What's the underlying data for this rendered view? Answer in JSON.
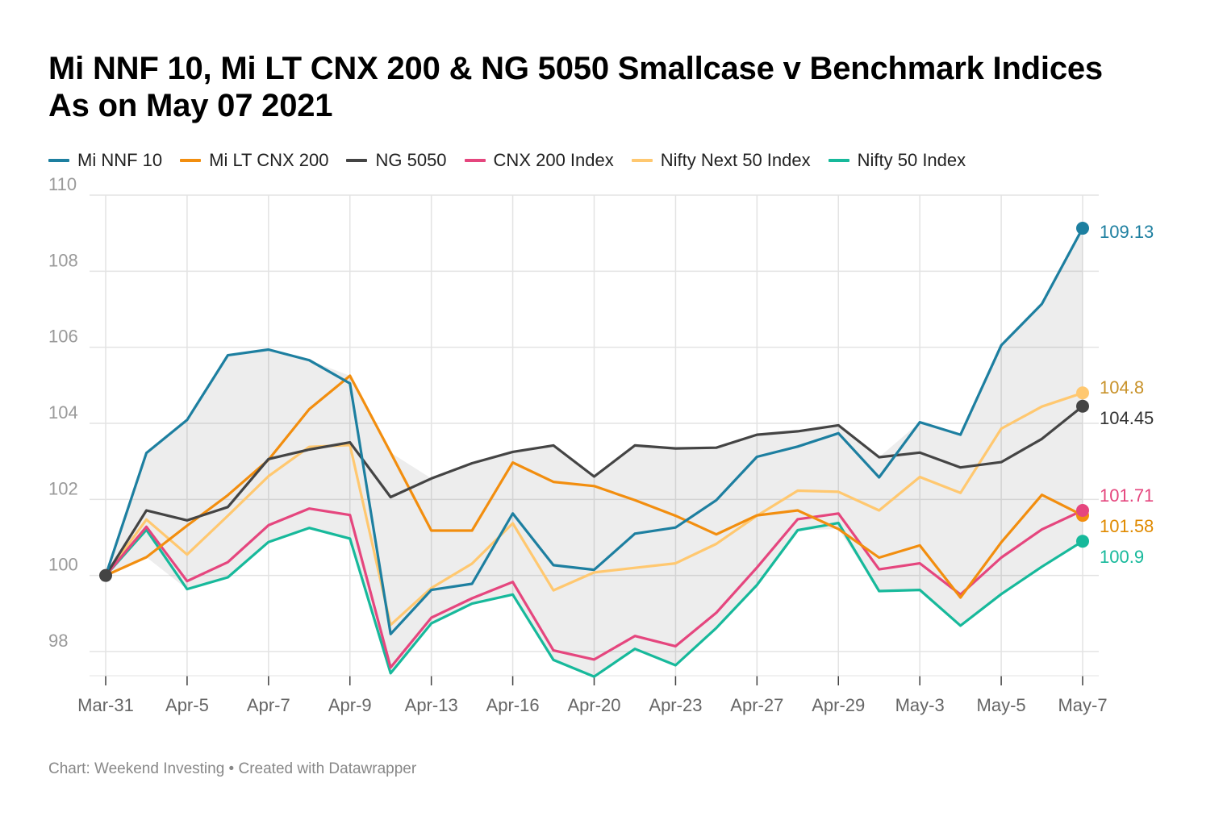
{
  "title": "Mi NNF 10, Mi LT CNX 200 & NG 5050 Smallcase v Benchmark Indices",
  "subtitle": "As on May 07 2021",
  "footer": "Chart: Weekend Investing • Created with Datawrapper",
  "chart_data": {
    "type": "line",
    "title": "Mi NNF 10, Mi LT CNX 200 & NG 5050 Smallcase v Benchmark Indices",
    "subtitle": "As on May 07 2021",
    "xlabel": "",
    "ylabel": "",
    "ylim": [
      97.2,
      110
    ],
    "yticks": [
      98,
      100,
      102,
      104,
      106,
      108,
      110
    ],
    "x": [
      "Mar-31",
      "Apr-1",
      "Apr-5",
      "Apr-6",
      "Apr-7",
      "Apr-8",
      "Apr-9",
      "Apr-12",
      "Apr-13",
      "Apr-15",
      "Apr-16",
      "Apr-19",
      "Apr-20",
      "Apr-22",
      "Apr-23",
      "Apr-26",
      "Apr-27",
      "Apr-28",
      "Apr-29",
      "Apr-30",
      "May-3",
      "May-4",
      "May-5",
      "May-6",
      "May-7"
    ],
    "xtick_labels": [
      "Mar-31",
      "Apr-5",
      "Apr-7",
      "Apr-9",
      "Apr-13",
      "Apr-16",
      "Apr-20",
      "Apr-23",
      "Apr-27",
      "Apr-29",
      "May-3",
      "May-5",
      "May-7"
    ],
    "xtick_indices": [
      0,
      2,
      4,
      6,
      8,
      10,
      12,
      14,
      16,
      18,
      20,
      22,
      24
    ],
    "grid": true,
    "legend_position": "top-left",
    "range_band": true,
    "series": [
      {
        "name": "Mi NNF 10",
        "color": "#1d7fa0",
        "end_label": "109.13",
        "label_color": "#1d7fa0",
        "values": [
          100,
          103.22,
          104.09,
          105.79,
          105.94,
          105.66,
          105.05,
          98.46,
          99.62,
          99.78,
          101.63,
          100.27,
          100.15,
          101.1,
          101.26,
          101.98,
          103.12,
          103.39,
          103.74,
          102.58,
          104.03,
          103.7,
          106.05,
          107.14,
          109.13
        ]
      },
      {
        "name": "Mi LT CNX 200",
        "color": "#f28e0f",
        "end_label": "101.58",
        "label_color": "#e08a00",
        "values": [
          100,
          100.48,
          101.31,
          102.11,
          103.04,
          104.37,
          105.25,
          103.23,
          101.18,
          101.18,
          102.97,
          102.46,
          102.35,
          101.98,
          101.57,
          101.08,
          101.58,
          101.71,
          101.22,
          100.47,
          100.79,
          99.42,
          100.87,
          102.12,
          101.58
        ]
      },
      {
        "name": "NG 5050",
        "color": "#444444",
        "end_label": "104.45",
        "label_color": "#333333",
        "values": [
          100,
          101.71,
          101.45,
          101.8,
          103.06,
          103.31,
          103.5,
          102.06,
          102.55,
          102.95,
          103.25,
          103.42,
          102.6,
          103.42,
          103.34,
          103.36,
          103.7,
          103.79,
          103.95,
          103.11,
          103.23,
          102.84,
          102.98,
          103.59,
          104.45
        ]
      },
      {
        "name": "CNX 200 Index",
        "color": "#e5467e",
        "end_label": "101.71",
        "label_color": "#e5467e",
        "values": [
          100,
          101.28,
          99.85,
          100.35,
          101.32,
          101.76,
          101.59,
          97.58,
          98.89,
          99.4,
          99.83,
          98.03,
          97.79,
          98.41,
          98.14,
          99.02,
          100.21,
          101.48,
          101.63,
          100.16,
          100.32,
          99.5,
          100.47,
          101.21,
          101.71
        ]
      },
      {
        "name": "Nifty Next 50 Index",
        "color": "#ffc870",
        "end_label": "104.8",
        "label_color": "#c8922a",
        "values": [
          100,
          101.47,
          100.55,
          101.57,
          102.61,
          103.38,
          103.43,
          98.7,
          99.67,
          100.31,
          101.37,
          99.61,
          100.08,
          100.2,
          100.32,
          100.83,
          101.57,
          102.23,
          102.2,
          101.71,
          102.59,
          102.17,
          103.86,
          104.44,
          104.8
        ]
      },
      {
        "name": "Nifty 50 Index",
        "color": "#17b99b",
        "end_label": "100.9",
        "label_color": "#17b99b",
        "values": [
          100,
          101.2,
          99.64,
          99.95,
          100.88,
          101.25,
          100.97,
          97.43,
          98.74,
          99.26,
          99.5,
          97.78,
          97.34,
          98.07,
          97.64,
          98.62,
          99.75,
          101.19,
          101.38,
          99.59,
          99.62,
          98.68,
          99.51,
          100.23,
          100.9
        ]
      }
    ]
  }
}
